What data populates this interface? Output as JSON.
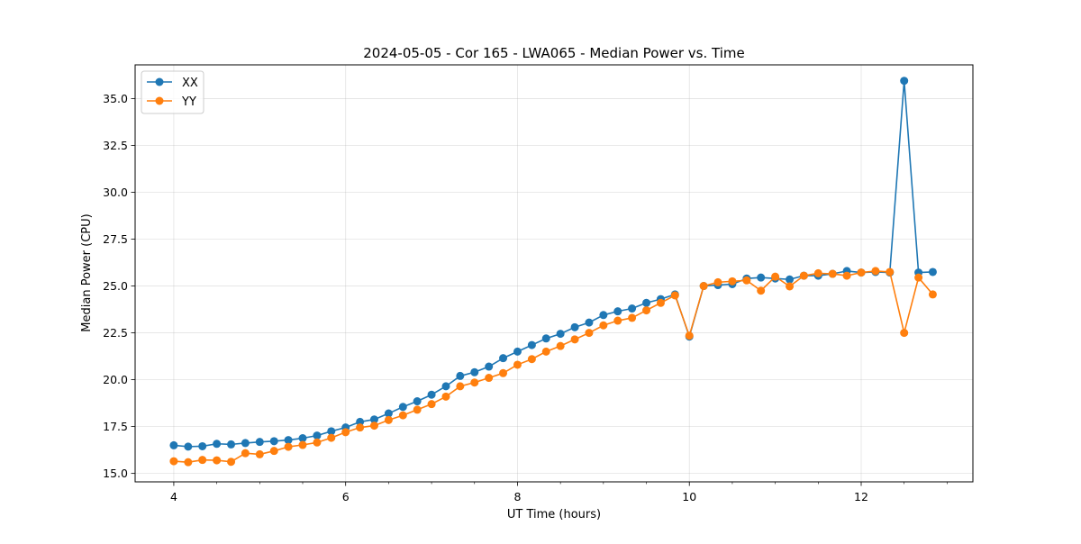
{
  "chart_data": {
    "type": "line",
    "title": "2024-05-05 - Cor 165 - LWA065 - Median Power vs. Time",
    "xlabel": "UT Time (hours)",
    "ylabel": "Median Power (CPU)",
    "xlim": [
      3.55,
      13.3
    ],
    "ylim": [
      14.55,
      36.8
    ],
    "xticks": [
      4,
      6,
      8,
      10,
      12
    ],
    "xtick_labels": [
      "4",
      "6",
      "8",
      "10",
      "12"
    ],
    "xminor_ticks": [
      3.5,
      4.5,
      5,
      5.5,
      6.5,
      7,
      7.5,
      8.5,
      9,
      9.5,
      10.5,
      11,
      11.5,
      12.5,
      13
    ],
    "yticks": [
      15.0,
      17.5,
      20.0,
      22.5,
      25.0,
      27.5,
      30.0,
      32.5,
      35.0
    ],
    "ytick_labels": [
      "15.0",
      "17.5",
      "20.0",
      "22.5",
      "25.0",
      "27.5",
      "30.0",
      "32.5",
      "35.0"
    ],
    "grid": true,
    "legend_position": "upper-left",
    "x": [
      4.0,
      4.167,
      4.333,
      4.5,
      4.667,
      4.833,
      5.0,
      5.167,
      5.333,
      5.5,
      5.667,
      5.833,
      6.0,
      6.167,
      6.333,
      6.5,
      6.667,
      6.833,
      7.0,
      7.167,
      7.333,
      7.5,
      7.667,
      7.833,
      8.0,
      8.167,
      8.333,
      8.5,
      8.667,
      8.833,
      9.0,
      9.167,
      9.333,
      9.5,
      9.667,
      9.833,
      10.0,
      10.167,
      10.333,
      10.5,
      10.667,
      10.833,
      11.0,
      11.167,
      11.333,
      11.5,
      11.667,
      11.833,
      12.0,
      12.167,
      12.333,
      12.5,
      12.667,
      12.833
    ],
    "series": [
      {
        "name": "XX",
        "color": "#1f77b4",
        "values": [
          16.5,
          16.43,
          16.45,
          16.58,
          16.55,
          16.62,
          16.68,
          16.72,
          16.78,
          16.88,
          17.02,
          17.25,
          17.45,
          17.75,
          17.88,
          18.2,
          18.55,
          18.85,
          19.2,
          19.65,
          20.2,
          20.4,
          20.7,
          21.15,
          21.5,
          21.85,
          22.2,
          22.45,
          22.8,
          23.05,
          23.45,
          23.65,
          23.8,
          24.1,
          24.3,
          24.55,
          22.3,
          25.0,
          25.05,
          25.1,
          25.4,
          25.45,
          25.4,
          25.35,
          25.55,
          25.55,
          25.65,
          25.8,
          25.72,
          25.75,
          25.72,
          35.95,
          25.72,
          25.75
        ]
      },
      {
        "name": "YY",
        "color": "#ff7f0e",
        "values": [
          15.65,
          15.6,
          15.72,
          15.7,
          15.62,
          16.08,
          16.02,
          16.2,
          16.42,
          16.52,
          16.65,
          16.9,
          17.2,
          17.45,
          17.55,
          17.85,
          18.1,
          18.4,
          18.7,
          19.1,
          19.65,
          19.85,
          20.1,
          20.35,
          20.8,
          21.1,
          21.5,
          21.8,
          22.15,
          22.5,
          22.9,
          23.15,
          23.3,
          23.7,
          24.1,
          24.5,
          22.35,
          25.0,
          25.2,
          25.25,
          25.3,
          24.75,
          25.5,
          24.98,
          25.55,
          25.68,
          25.65,
          25.55,
          25.72,
          25.8,
          25.75,
          22.5,
          25.45,
          24.55
        ]
      }
    ]
  }
}
